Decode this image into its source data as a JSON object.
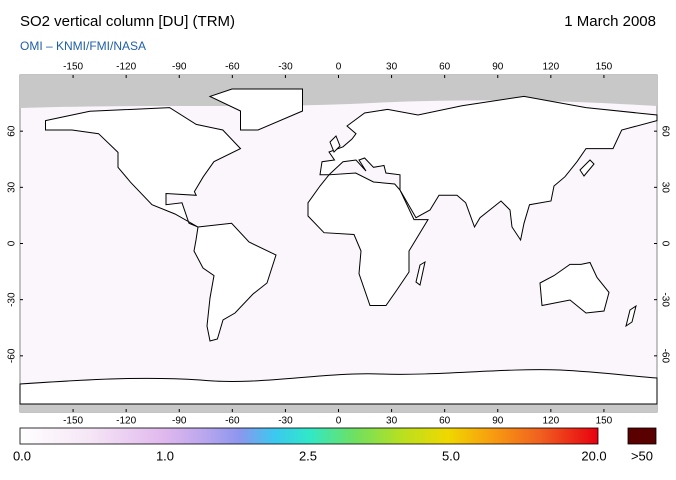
{
  "header": {
    "title": "SO2 vertical column [DU] (TRM)",
    "date": "1 March 2008",
    "subtitle": "OMI  –  KNMI/FMI/NASA"
  },
  "map": {
    "xlim": [
      -180,
      180
    ],
    "ylim": [
      -90,
      90
    ],
    "xticks": [
      -150,
      -120,
      -90,
      -60,
      -30,
      0,
      30,
      60,
      90,
      120,
      150
    ],
    "yticks": [
      60,
      30,
      0,
      -30,
      -60
    ]
  },
  "colorbar": {
    "labels": [
      "0.0",
      "1.0",
      "2.5",
      "5.0",
      "20.0"
    ],
    "overflow_label": ">50"
  }
}
